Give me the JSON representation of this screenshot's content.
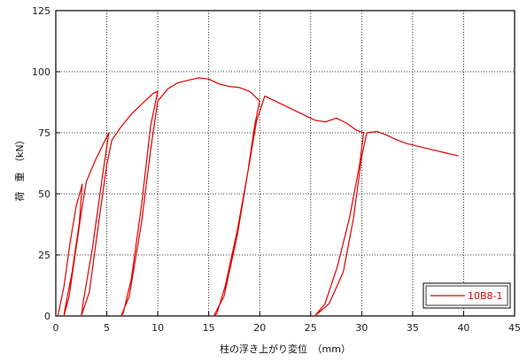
{
  "chart_data": {
    "type": "line",
    "xlabel": "柱の浮き上がり変位　（mm）",
    "ylabel": "荷　重　（kN）",
    "xlim": [
      0,
      45
    ],
    "ylim": [
      0,
      125
    ],
    "x_ticks": [
      "0",
      "5",
      "10",
      "15",
      "20",
      "25",
      "30",
      "35",
      "40",
      "45"
    ],
    "y_ticks": [
      "0",
      "25",
      "50",
      "75",
      "100",
      "125"
    ],
    "grid": "dotted",
    "legend_position": "bottom-right",
    "series": [
      {
        "name": "10B8-1",
        "color": "#e00000",
        "points": [
          [
            0.2,
            0
          ],
          [
            0.8,
            12
          ],
          [
            1.4,
            30
          ],
          [
            2.0,
            45
          ],
          [
            2.6,
            54
          ],
          [
            2.3,
            38
          ],
          [
            1.6,
            18
          ],
          [
            0.9,
            3
          ],
          [
            0.8,
            0
          ],
          [
            1.3,
            8
          ],
          [
            2.0,
            28
          ],
          [
            2.6,
            45
          ],
          [
            3.0,
            55
          ],
          [
            3.8,
            63
          ],
          [
            4.6,
            70
          ],
          [
            5.2,
            75
          ],
          [
            4.6,
            58
          ],
          [
            3.6,
            28
          ],
          [
            2.7,
            6
          ],
          [
            2.5,
            0
          ],
          [
            3.3,
            10
          ],
          [
            4.2,
            38
          ],
          [
            5.0,
            62
          ],
          [
            5.5,
            72
          ],
          [
            6.5,
            78
          ],
          [
            7.5,
            83
          ],
          [
            8.5,
            87
          ],
          [
            9.5,
            91
          ],
          [
            10.0,
            92
          ],
          [
            9.3,
            78
          ],
          [
            8.4,
            45
          ],
          [
            7.4,
            15
          ],
          [
            6.6,
            1
          ],
          [
            6.4,
            0
          ],
          [
            7.2,
            8
          ],
          [
            8.4,
            38
          ],
          [
            9.3,
            68
          ],
          [
            10.0,
            88
          ],
          [
            11.0,
            93
          ],
          [
            12.0,
            95.5
          ],
          [
            13.0,
            96.5
          ],
          [
            14.0,
            97.5
          ],
          [
            15.0,
            97
          ],
          [
            16.0,
            95
          ],
          [
            17.0,
            94
          ],
          [
            18.0,
            93.5
          ],
          [
            19.0,
            92
          ],
          [
            20.0,
            88
          ],
          [
            19.5,
            78
          ],
          [
            18.8,
            58
          ],
          [
            17.8,
            35
          ],
          [
            16.6,
            12
          ],
          [
            15.8,
            1
          ],
          [
            15.5,
            0
          ],
          [
            16.5,
            8
          ],
          [
            17.8,
            33
          ],
          [
            18.8,
            58
          ],
          [
            19.7,
            80
          ],
          [
            20.5,
            90
          ],
          [
            21.5,
            88
          ],
          [
            22.5,
            86
          ],
          [
            23.5,
            84
          ],
          [
            24.5,
            82
          ],
          [
            25.5,
            80
          ],
          [
            26.5,
            79.5
          ],
          [
            27.5,
            81
          ],
          [
            28.5,
            79
          ],
          [
            29.5,
            76
          ],
          [
            30.2,
            75
          ],
          [
            29.8,
            62
          ],
          [
            28.8,
            40
          ],
          [
            27.6,
            20
          ],
          [
            26.4,
            5
          ],
          [
            25.4,
            0
          ],
          [
            26.8,
            5
          ],
          [
            28.2,
            18
          ],
          [
            29.2,
            40
          ],
          [
            30.0,
            65
          ],
          [
            30.5,
            75
          ],
          [
            31.5,
            75.5
          ],
          [
            32.5,
            74
          ],
          [
            33.5,
            72
          ],
          [
            34.5,
            70.5
          ],
          [
            35.5,
            69.5
          ],
          [
            36.5,
            68.5
          ],
          [
            37.5,
            67.5
          ],
          [
            38.5,
            66.5
          ],
          [
            39.5,
            65.5
          ]
        ]
      }
    ]
  }
}
